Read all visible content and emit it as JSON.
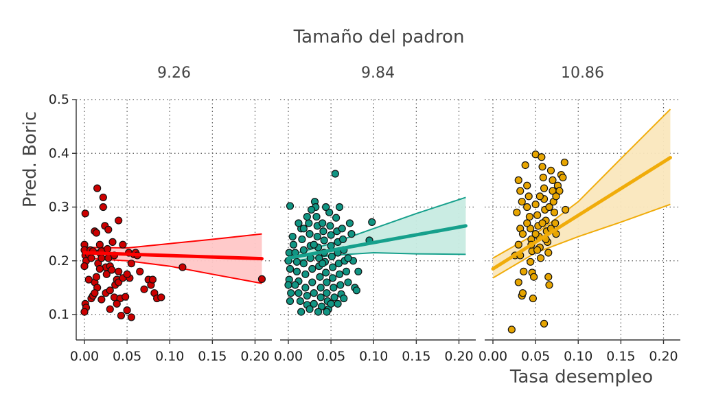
{
  "chart_data": {
    "type": "scatter",
    "title": "Tamaño del padron",
    "xlabel": "Tasa desempleo",
    "ylabel": "Pred. Boric",
    "xlim": [
      -0.01,
      0.215
    ],
    "ylim": [
      0.05,
      0.5
    ],
    "xticks": [
      "0.00",
      "0.05",
      "0.10",
      "0.15",
      "0.20"
    ],
    "xtick_values": [
      0,
      0.05,
      0.1,
      0.15,
      0.2
    ],
    "yticks": [
      "0.1",
      "0.2",
      "0.3",
      "0.4",
      "0.5"
    ],
    "ytick_values": [
      0.1,
      0.2,
      0.3,
      0.4,
      0.5
    ],
    "grid": true,
    "facets": [
      {
        "label": "9.26",
        "color": "#ff0000",
        "point_color": "#cc0000",
        "fill": "#ffc7c7",
        "fit": {
          "x": [
            0,
            0.208
          ],
          "y": [
            0.215,
            0.204
          ]
        },
        "ci_upper": {
          "x": [
            0,
            0.05,
            0.1,
            0.15,
            0.208
          ],
          "y": [
            0.225,
            0.224,
            0.232,
            0.24,
            0.25
          ]
        },
        "ci_lower": {
          "x": [
            0,
            0.05,
            0.1,
            0.15,
            0.208
          ],
          "y": [
            0.205,
            0.2,
            0.19,
            0.175,
            0.158
          ]
        },
        "points": [
          [
            0.001,
            0.288
          ],
          [
            0.0,
            0.23
          ],
          [
            0.0,
            0.22
          ],
          [
            0.001,
            0.21
          ],
          [
            0.002,
            0.2
          ],
          [
            0.0,
            0.19
          ],
          [
            0.001,
            0.12
          ],
          [
            0.002,
            0.113
          ],
          [
            0.0,
            0.105
          ],
          [
            0.005,
            0.212
          ],
          [
            0.007,
            0.22
          ],
          [
            0.008,
            0.205
          ],
          [
            0.01,
            0.218
          ],
          [
            0.012,
            0.255
          ],
          [
            0.014,
            0.252
          ],
          [
            0.015,
            0.335
          ],
          [
            0.012,
            0.16
          ],
          [
            0.014,
            0.17
          ],
          [
            0.016,
            0.195
          ],
          [
            0.018,
            0.215
          ],
          [
            0.018,
            0.23
          ],
          [
            0.02,
            0.218
          ],
          [
            0.02,
            0.205
          ],
          [
            0.022,
            0.3
          ],
          [
            0.022,
            0.318
          ],
          [
            0.024,
            0.265
          ],
          [
            0.025,
            0.188
          ],
          [
            0.026,
            0.175
          ],
          [
            0.027,
            0.222
          ],
          [
            0.028,
            0.205
          ],
          [
            0.028,
            0.258
          ],
          [
            0.03,
            0.19
          ],
          [
            0.032,
            0.183
          ],
          [
            0.033,
            0.235
          ],
          [
            0.035,
            0.132
          ],
          [
            0.036,
            0.155
          ],
          [
            0.038,
            0.165
          ],
          [
            0.04,
            0.275
          ],
          [
            0.04,
            0.16
          ],
          [
            0.042,
            0.13
          ],
          [
            0.043,
            0.098
          ],
          [
            0.045,
            0.168
          ],
          [
            0.048,
            0.133
          ],
          [
            0.05,
            0.108
          ],
          [
            0.052,
            0.215
          ],
          [
            0.053,
            0.168
          ],
          [
            0.055,
            0.095
          ],
          [
            0.055,
            0.195
          ],
          [
            0.058,
            0.212
          ],
          [
            0.06,
            0.215
          ],
          [
            0.062,
            0.21
          ],
          [
            0.065,
            0.18
          ],
          [
            0.07,
            0.147
          ],
          [
            0.075,
            0.165
          ],
          [
            0.078,
            0.155
          ],
          [
            0.08,
            0.165
          ],
          [
            0.082,
            0.14
          ],
          [
            0.085,
            0.13
          ],
          [
            0.09,
            0.132
          ],
          [
            0.008,
            0.13
          ],
          [
            0.01,
            0.135
          ],
          [
            0.02,
            0.128
          ],
          [
            0.025,
            0.14
          ],
          [
            0.03,
            0.11
          ],
          [
            0.015,
            0.15
          ],
          [
            0.035,
            0.21
          ],
          [
            0.045,
            0.23
          ],
          [
            0.115,
            0.188
          ],
          [
            0.208,
            0.166
          ],
          [
            0.005,
            0.165
          ],
          [
            0.012,
            0.14
          ],
          [
            0.03,
            0.145
          ],
          [
            0.038,
            0.12
          ],
          [
            0.04,
            0.18
          ],
          [
            0.018,
            0.185
          ],
          [
            0.05,
            0.175
          ]
        ]
      },
      {
        "label": "9.84",
        "color": "#16a08c",
        "point_color": "#119583",
        "fill": "#c7ebe2",
        "fit": {
          "x": [
            0,
            0.208
          ],
          "y": [
            0.205,
            0.265
          ]
        },
        "ci_upper": {
          "x": [
            0,
            0.05,
            0.1,
            0.15,
            0.208
          ],
          "y": [
            0.21,
            0.232,
            0.26,
            0.288,
            0.318
          ]
        },
        "ci_lower": {
          "x": [
            0,
            0.05,
            0.1,
            0.15,
            0.208
          ],
          "y": [
            0.198,
            0.21,
            0.215,
            0.213,
            0.212
          ]
        },
        "points": [
          [
            0.002,
            0.302
          ],
          [
            0.001,
            0.215
          ],
          [
            0.0,
            0.2
          ],
          [
            0.002,
            0.185
          ],
          [
            0.001,
            0.165
          ],
          [
            0.0,
            0.155
          ],
          [
            0.003,
            0.14
          ],
          [
            0.002,
            0.125
          ],
          [
            0.005,
            0.245
          ],
          [
            0.006,
            0.23
          ],
          [
            0.008,
            0.215
          ],
          [
            0.01,
            0.198
          ],
          [
            0.01,
            0.18
          ],
          [
            0.012,
            0.162
          ],
          [
            0.012,
            0.14
          ],
          [
            0.014,
            0.125
          ],
          [
            0.015,
            0.26
          ],
          [
            0.016,
            0.24
          ],
          [
            0.018,
            0.22
          ],
          [
            0.018,
            0.195
          ],
          [
            0.02,
            0.175
          ],
          [
            0.02,
            0.15
          ],
          [
            0.022,
            0.135
          ],
          [
            0.022,
            0.118
          ],
          [
            0.024,
            0.27
          ],
          [
            0.025,
            0.25
          ],
          [
            0.026,
            0.228
          ],
          [
            0.026,
            0.205
          ],
          [
            0.028,
            0.185
          ],
          [
            0.028,
            0.16
          ],
          [
            0.03,
            0.14
          ],
          [
            0.03,
            0.12
          ],
          [
            0.031,
            0.31
          ],
          [
            0.032,
            0.3
          ],
          [
            0.033,
            0.282
          ],
          [
            0.034,
            0.265
          ],
          [
            0.034,
            0.245
          ],
          [
            0.035,
            0.225
          ],
          [
            0.036,
            0.205
          ],
          [
            0.036,
            0.19
          ],
          [
            0.037,
            0.17
          ],
          [
            0.038,
            0.15
          ],
          [
            0.038,
            0.132
          ],
          [
            0.039,
            0.115
          ],
          [
            0.04,
            0.27
          ],
          [
            0.041,
            0.255
          ],
          [
            0.042,
            0.238
          ],
          [
            0.042,
            0.215
          ],
          [
            0.043,
            0.198
          ],
          [
            0.044,
            0.178
          ],
          [
            0.045,
            0.16
          ],
          [
            0.045,
            0.14
          ],
          [
            0.046,
            0.125
          ],
          [
            0.047,
            0.11
          ],
          [
            0.048,
            0.29
          ],
          [
            0.049,
            0.265
          ],
          [
            0.05,
            0.248
          ],
          [
            0.05,
            0.228
          ],
          [
            0.051,
            0.208
          ],
          [
            0.052,
            0.188
          ],
          [
            0.052,
            0.168
          ],
          [
            0.053,
            0.15
          ],
          [
            0.054,
            0.132
          ],
          [
            0.055,
            0.362
          ],
          [
            0.056,
            0.28
          ],
          [
            0.057,
            0.255
          ],
          [
            0.058,
            0.235
          ],
          [
            0.058,
            0.215
          ],
          [
            0.059,
            0.195
          ],
          [
            0.06,
            0.175
          ],
          [
            0.061,
            0.155
          ],
          [
            0.062,
            0.138
          ],
          [
            0.063,
            0.26
          ],
          [
            0.064,
            0.24
          ],
          [
            0.065,
            0.22
          ],
          [
            0.066,
            0.2
          ],
          [
            0.068,
            0.18
          ],
          [
            0.07,
            0.16
          ],
          [
            0.072,
            0.27
          ],
          [
            0.074,
            0.25
          ],
          [
            0.076,
            0.2
          ],
          [
            0.078,
            0.15
          ],
          [
            0.08,
            0.145
          ],
          [
            0.082,
            0.18
          ],
          [
            0.098,
            0.272
          ],
          [
            0.095,
            0.238
          ],
          [
            0.015,
            0.105
          ],
          [
            0.022,
            0.282
          ],
          [
            0.012,
            0.27
          ],
          [
            0.03,
            0.23
          ],
          [
            0.04,
            0.195
          ],
          [
            0.045,
            0.105
          ],
          [
            0.05,
            0.12
          ],
          [
            0.035,
            0.105
          ],
          [
            0.025,
            0.11
          ],
          [
            0.058,
            0.12
          ],
          [
            0.065,
            0.13
          ],
          [
            0.07,
            0.205
          ],
          [
            0.008,
            0.155
          ],
          [
            0.018,
            0.26
          ],
          [
            0.027,
            0.295
          ],
          [
            0.044,
            0.3
          ],
          [
            0.06,
            0.3
          ]
        ]
      },
      {
        "label": "10.86",
        "color": "#f0ac0a",
        "point_color": "#e7a500",
        "fill": "#fae7bd",
        "fit": {
          "x": [
            0,
            0.208
          ],
          "y": [
            0.185,
            0.392
          ]
        },
        "ci_upper": {
          "x": [
            0,
            0.05,
            0.1,
            0.15,
            0.208
          ],
          "y": [
            0.205,
            0.25,
            0.31,
            0.39,
            0.482
          ]
        },
        "ci_lower": {
          "x": [
            0,
            0.05,
            0.1,
            0.15,
            0.208
          ],
          "y": [
            0.168,
            0.215,
            0.245,
            0.272,
            0.305
          ]
        },
        "points": [
          [
            0.022,
            0.072
          ],
          [
            0.03,
            0.35
          ],
          [
            0.032,
            0.33
          ],
          [
            0.034,
            0.31
          ],
          [
            0.028,
            0.29
          ],
          [
            0.032,
            0.26
          ],
          [
            0.035,
            0.25
          ],
          [
            0.03,
            0.23
          ],
          [
            0.026,
            0.21
          ],
          [
            0.032,
            0.21
          ],
          [
            0.036,
            0.18
          ],
          [
            0.034,
            0.135
          ],
          [
            0.038,
            0.378
          ],
          [
            0.04,
            0.34
          ],
          [
            0.042,
            0.32
          ],
          [
            0.04,
            0.3
          ],
          [
            0.043,
            0.282
          ],
          [
            0.044,
            0.26
          ],
          [
            0.045,
            0.24
          ],
          [
            0.046,
            0.218
          ],
          [
            0.044,
            0.198
          ],
          [
            0.046,
            0.178
          ],
          [
            0.047,
            0.13
          ],
          [
            0.05,
            0.398
          ],
          [
            0.05,
            0.305
          ],
          [
            0.052,
            0.285
          ],
          [
            0.053,
            0.265
          ],
          [
            0.054,
            0.245
          ],
          [
            0.055,
            0.225
          ],
          [
            0.056,
            0.205
          ],
          [
            0.057,
            0.393
          ],
          [
            0.058,
            0.375
          ],
          [
            0.059,
            0.355
          ],
          [
            0.06,
            0.335
          ],
          [
            0.06,
            0.315
          ],
          [
            0.061,
            0.295
          ],
          [
            0.062,
            0.275
          ],
          [
            0.063,
            0.255
          ],
          [
            0.064,
            0.235
          ],
          [
            0.065,
            0.215
          ],
          [
            0.065,
            0.17
          ],
          [
            0.066,
            0.155
          ],
          [
            0.068,
            0.368
          ],
          [
            0.07,
            0.35
          ],
          [
            0.07,
            0.33
          ],
          [
            0.071,
            0.31
          ],
          [
            0.072,
            0.29
          ],
          [
            0.073,
            0.27
          ],
          [
            0.074,
            0.25
          ],
          [
            0.076,
            0.34
          ],
          [
            0.078,
            0.33
          ],
          [
            0.08,
            0.36
          ],
          [
            0.082,
            0.355
          ],
          [
            0.084,
            0.383
          ],
          [
            0.085,
            0.295
          ],
          [
            0.06,
            0.083
          ],
          [
            0.048,
            0.17
          ],
          [
            0.05,
            0.25
          ],
          [
            0.04,
            0.27
          ],
          [
            0.055,
            0.32
          ],
          [
            0.058,
            0.27
          ],
          [
            0.062,
            0.24
          ],
          [
            0.045,
            0.23
          ],
          [
            0.052,
            0.22
          ],
          [
            0.066,
            0.3
          ],
          [
            0.068,
            0.26
          ],
          [
            0.074,
            0.32
          ],
          [
            0.035,
            0.14
          ],
          [
            0.03,
            0.16
          ]
        ]
      }
    ]
  }
}
